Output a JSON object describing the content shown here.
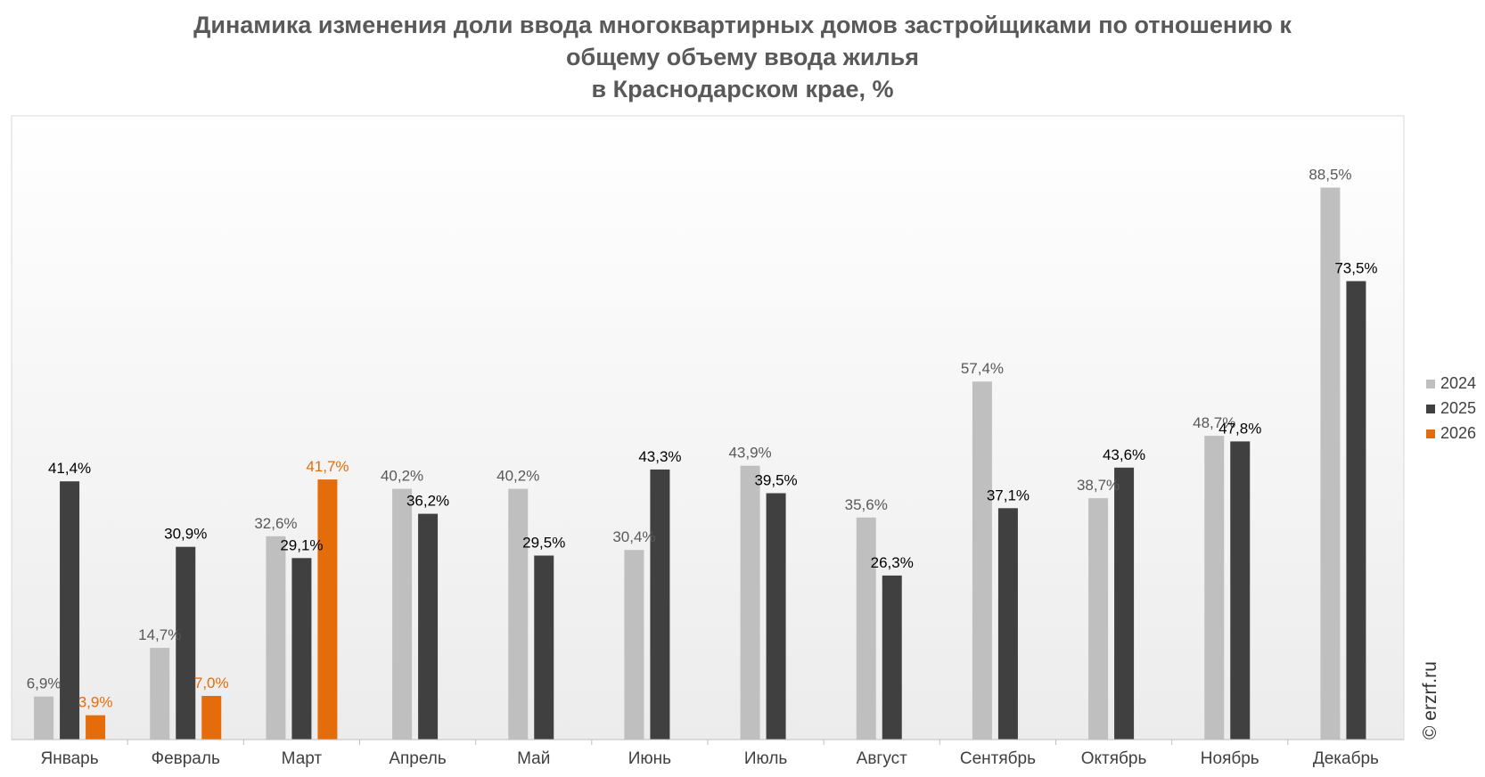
{
  "chart_data": {
    "type": "bar",
    "title_lines": [
      "Динамика изменения доли ввода многоквартирных домов застройщиками по отношению к",
      "общему объему ввода жилья",
      "в Краснодарском крае, %"
    ],
    "categories": [
      "Январь",
      "Февраль",
      "Март",
      "Апрель",
      "Май",
      "Июнь",
      "Июль",
      "Август",
      "Сентябрь",
      "Октябрь",
      "Ноябрь",
      "Декабрь"
    ],
    "series": [
      {
        "name": "2024",
        "color": "#bfbfbf",
        "label_color": "#595959",
        "values": [
          6.9,
          14.7,
          32.6,
          40.2,
          40.2,
          30.4,
          43.9,
          35.6,
          57.4,
          38.7,
          48.7,
          88.5
        ],
        "labels": [
          "6,9%",
          "14,7%",
          "32,6%",
          "40,2%",
          "40,2%",
          "30,4%",
          "43,9%",
          "35,6%",
          "57,4%",
          "38,7%",
          "48,7%",
          "88,5%"
        ]
      },
      {
        "name": "2025",
        "color": "#404040",
        "label_color": "#000000",
        "values": [
          41.4,
          30.9,
          29.1,
          36.2,
          29.5,
          43.3,
          39.5,
          26.3,
          37.1,
          43.6,
          47.8,
          73.5
        ],
        "labels": [
          "41,4%",
          "30,9%",
          "29,1%",
          "36,2%",
          "29,5%",
          "43,3%",
          "39,5%",
          "26,3%",
          "37,1%",
          "43,6%",
          "47,8%",
          "73,5%"
        ]
      },
      {
        "name": "2026",
        "color": "#e46c0a",
        "label_color": "#e46c0a",
        "values": [
          3.9,
          7.0,
          41.7,
          null,
          null,
          null,
          null,
          null,
          null,
          null,
          null,
          null
        ],
        "labels": [
          "3,9%",
          "7,0%",
          "41,7%",
          null,
          null,
          null,
          null,
          null,
          null,
          null,
          null,
          null
        ]
      }
    ],
    "ylim": [
      0,
      100
    ],
    "grid": false,
    "legend_position": "right",
    "watermark": "© erzrf.ru"
  }
}
